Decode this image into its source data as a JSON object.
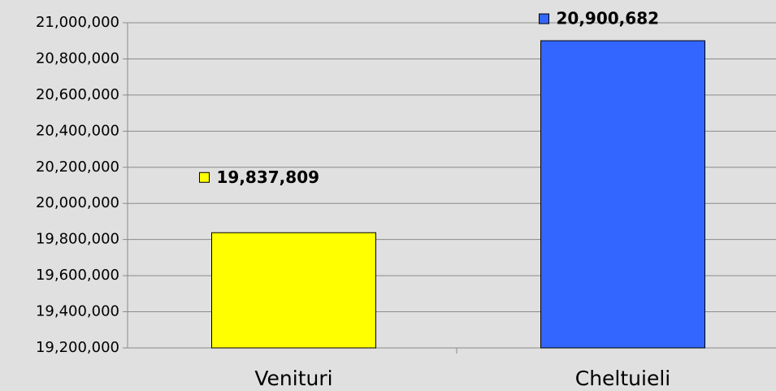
{
  "chart_data": {
    "type": "bar",
    "categories": [
      "Venituri",
      "Cheltuieli"
    ],
    "values": [
      19837809,
      20900682
    ],
    "value_labels": [
      "19,837,809",
      "20,900,682"
    ],
    "colors": [
      "#ffff00",
      "#3366ff"
    ],
    "ylim": [
      19200000,
      21000000
    ],
    "yticks": [
      {
        "value": 19200000,
        "label": "19,200,000"
      },
      {
        "value": 19400000,
        "label": "19,400,000"
      },
      {
        "value": 19600000,
        "label": "19,600,000"
      },
      {
        "value": 19800000,
        "label": "19,800,000"
      },
      {
        "value": 20000000,
        "label": "20,000,000"
      },
      {
        "value": 20200000,
        "label": "20,200,000"
      },
      {
        "value": 20400000,
        "label": "20,400,000"
      },
      {
        "value": 20600000,
        "label": "20,600,000"
      },
      {
        "value": 20800000,
        "label": "20,800,000"
      },
      {
        "value": 21000000,
        "label": "21,000,000"
      }
    ],
    "grid": true
  }
}
